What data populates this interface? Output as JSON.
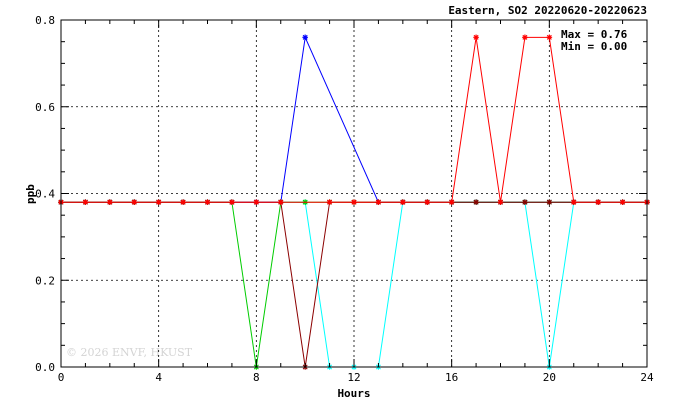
{
  "chart_data": {
    "type": "line",
    "title": "Eastern, SO2 20220620-20220623",
    "xlabel": "Hours",
    "ylabel": "ppb",
    "xlim": [
      0,
      24
    ],
    "ylim": [
      0,
      0.8
    ],
    "x_ticks": [
      0,
      4,
      8,
      12,
      16,
      20,
      24
    ],
    "y_ticks": [
      0.0,
      0.2,
      0.4,
      0.6,
      0.8
    ],
    "y_tick_labels": [
      "0.0",
      "0.2",
      "0.4",
      "0.6",
      "0.8"
    ],
    "grid": true,
    "stats": {
      "max_text": "Max = 0.76",
      "min_text": "Min = 0.00"
    },
    "watermark": "© 2026 ENVF, HKUST",
    "x": [
      0,
      1,
      2,
      3,
      4,
      5,
      6,
      7,
      8,
      9,
      10,
      11,
      12,
      13,
      14,
      15,
      16,
      17,
      18,
      19,
      20,
      21,
      22,
      23,
      24
    ],
    "series": [
      {
        "color": "#00ffff",
        "values": [
          0.38,
          0.38,
          0.38,
          0.38,
          0.38,
          0.38,
          0.38,
          0.38,
          0.38,
          0.38,
          0.38,
          0.0,
          0.0,
          0.0,
          0.38,
          0.38,
          0.38,
          0.38,
          0.38,
          0.38,
          0.0,
          0.38,
          0.38,
          0.38,
          0.38
        ]
      },
      {
        "color": "#0000ff",
        "values": [
          0.38,
          0.38,
          0.38,
          0.38,
          0.38,
          0.38,
          0.38,
          0.38,
          0.38,
          0.38,
          0.76,
          null,
          null,
          0.38,
          0.38,
          0.38,
          0.38,
          0.38,
          0.38,
          0.38,
          0.38,
          0.38,
          0.38,
          0.38,
          0.38
        ]
      },
      {
        "color": "#00cc00",
        "values": [
          0.38,
          0.38,
          0.38,
          0.38,
          0.38,
          0.38,
          0.38,
          0.38,
          0.0,
          0.38,
          0.38,
          0.38,
          0.38,
          0.38,
          0.38,
          0.38,
          0.38,
          0.38,
          0.38,
          0.38,
          0.38,
          0.38,
          0.38,
          0.38,
          0.38
        ]
      },
      {
        "color": "#8b0000",
        "values": [
          0.38,
          0.38,
          0.38,
          0.38,
          0.38,
          0.38,
          0.38,
          0.38,
          0.38,
          0.38,
          0.0,
          0.38,
          0.38,
          0.38,
          0.38,
          0.38,
          0.38,
          0.38,
          0.38,
          0.38,
          0.38,
          0.38,
          0.38,
          0.38,
          0.38
        ]
      },
      {
        "color": "#ff0000",
        "values": [
          0.38,
          0.38,
          0.38,
          0.38,
          0.38,
          0.38,
          0.38,
          0.38,
          0.38,
          0.38,
          null,
          0.38,
          0.38,
          0.38,
          0.38,
          0.38,
          0.38,
          0.76,
          0.38,
          0.76,
          0.76,
          0.38,
          0.38,
          0.38,
          0.38
        ]
      }
    ]
  }
}
